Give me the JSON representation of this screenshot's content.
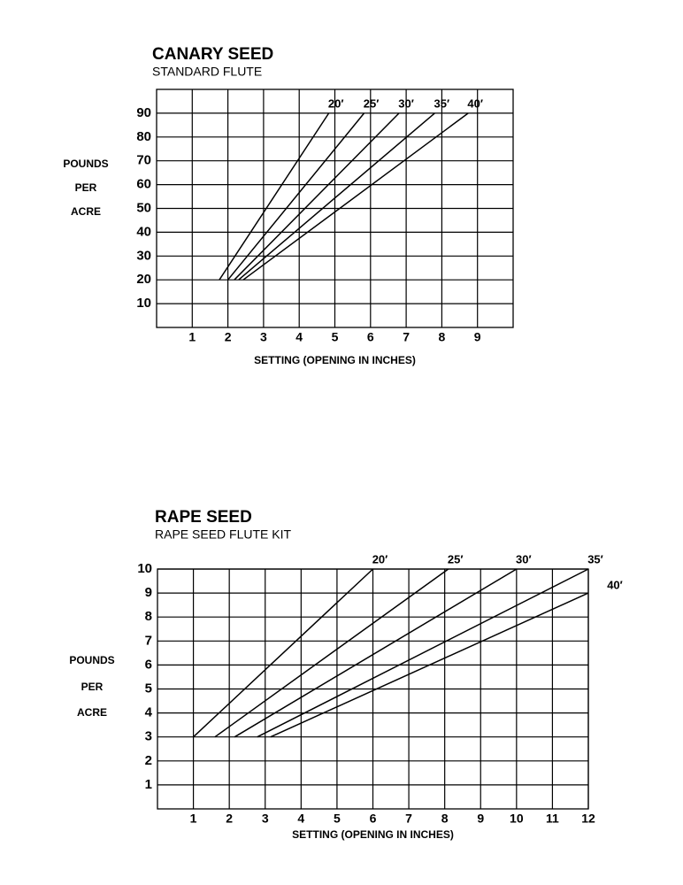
{
  "chart_data": [
    {
      "type": "line",
      "title": "CANARY SEED",
      "subtitle": "STANDARD FLUTE",
      "xlabel": "SETTING (OPENING IN INCHES)",
      "ylabel_lines": [
        "POUNDS",
        "PER",
        "ACRE"
      ],
      "xlim": [
        0,
        10
      ],
      "ylim": [
        0,
        100
      ],
      "xticks": [
        1,
        2,
        3,
        4,
        5,
        6,
        7,
        8,
        9
      ],
      "yticks": [
        10,
        20,
        30,
        40,
        50,
        60,
        70,
        80,
        90
      ],
      "grid": true,
      "color": "#000000",
      "series": [
        {
          "name": "20′",
          "x": [
            1.76,
            4.83
          ],
          "values": [
            20,
            90
          ]
        },
        {
          "name": "25′",
          "x": [
            2.0,
            5.82
          ],
          "values": [
            20,
            90
          ]
        },
        {
          "name": "30′",
          "x": [
            2.18,
            6.8
          ],
          "values": [
            20,
            90
          ]
        },
        {
          "name": "35′",
          "x": [
            2.3,
            7.8
          ],
          "values": [
            20,
            90
          ]
        },
        {
          "name": "40′",
          "x": [
            2.43,
            8.74
          ],
          "values": [
            20,
            90
          ]
        }
      ]
    },
    {
      "type": "line",
      "title": "RAPE SEED",
      "subtitle": "RAPE SEED FLUTE KIT",
      "xlabel": "SETTING (OPENING IN INCHES)",
      "ylabel_lines": [
        "POUNDS",
        "PER",
        "ACRE"
      ],
      "xlim": [
        0,
        12
      ],
      "ylim": [
        0,
        10
      ],
      "xticks": [
        1,
        2,
        3,
        4,
        5,
        6,
        7,
        8,
        9,
        10,
        11,
        12
      ],
      "yticks": [
        1,
        2,
        3,
        4,
        5,
        6,
        7,
        8,
        9,
        10
      ],
      "grid": true,
      "color": "#000000",
      "series": [
        {
          "name": "20′",
          "x": [
            1.0,
            6.0
          ],
          "values": [
            3,
            10
          ]
        },
        {
          "name": "25′",
          "x": [
            1.6,
            8.1
          ],
          "values": [
            3,
            10
          ]
        },
        {
          "name": "30′",
          "x": [
            2.15,
            10.0
          ],
          "values": [
            3,
            10
          ]
        },
        {
          "name": "35′",
          "x": [
            2.78,
            12.0
          ],
          "values": [
            3,
            10
          ]
        },
        {
          "name": "40′",
          "x": [
            3.15,
            12.0
          ],
          "values": [
            3,
            9
          ]
        }
      ]
    }
  ]
}
